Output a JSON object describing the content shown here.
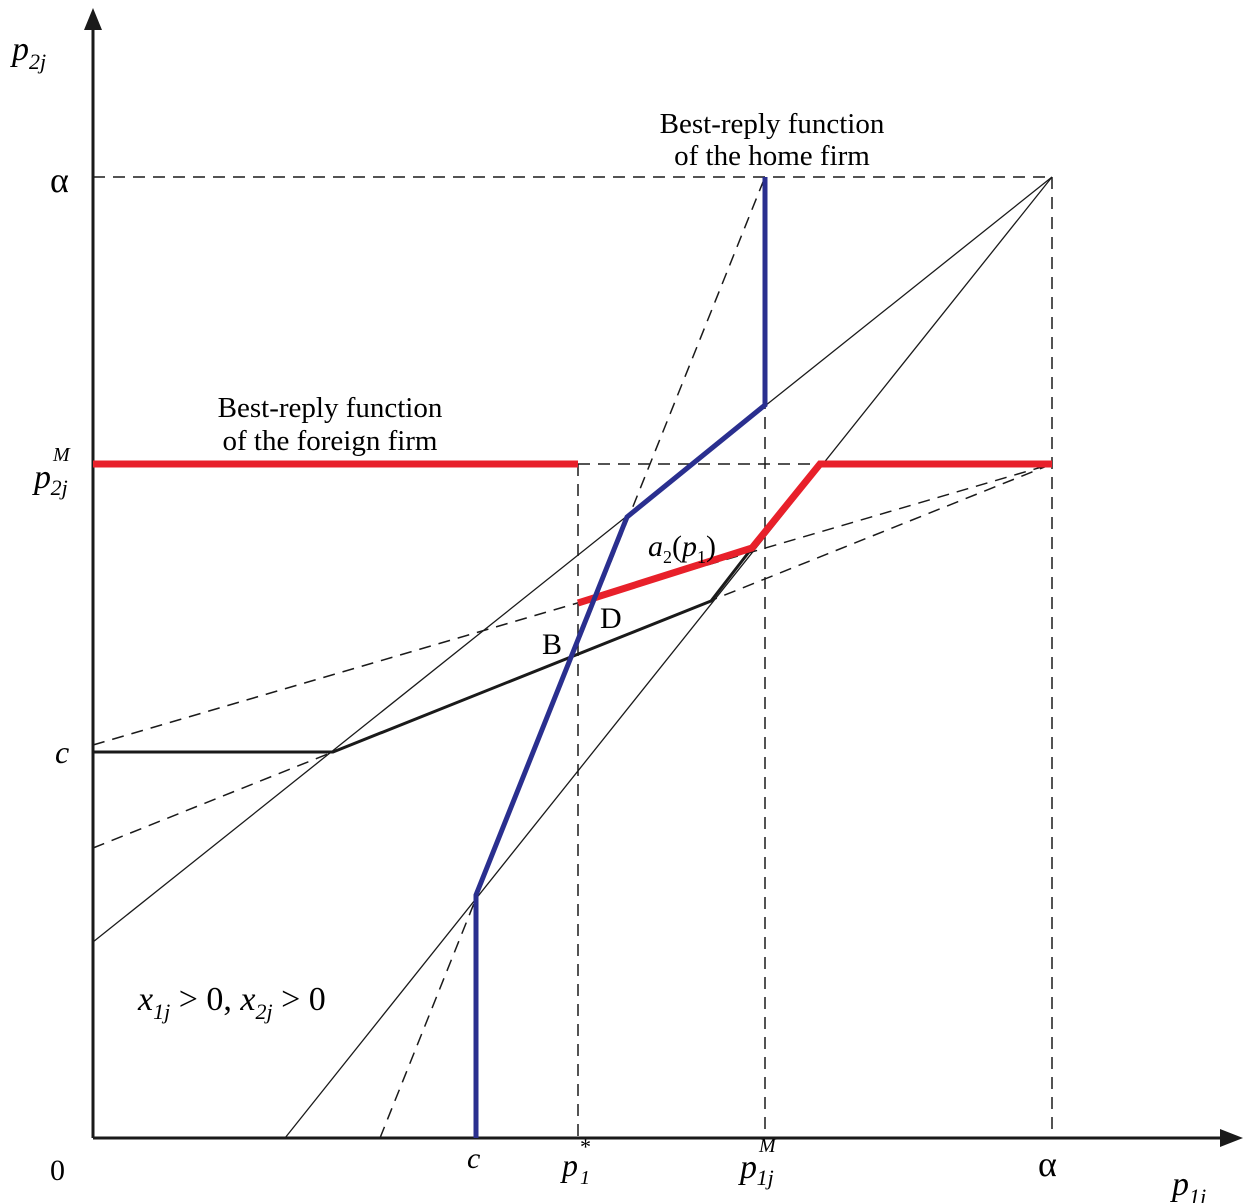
{
  "axes": {
    "y_label": {
      "base": "p",
      "sub": "2j"
    },
    "x_label": {
      "base": "p",
      "sub": "1j"
    },
    "origin": "0"
  },
  "y_ticks": {
    "alpha": "α",
    "p2jM": {
      "base": "p",
      "sup": "M",
      "sub": "2j"
    },
    "c": "c"
  },
  "x_ticks": {
    "c": "c",
    "p1star": {
      "base": "p",
      "sup": "*",
      "sub": "1"
    },
    "p1jM": {
      "base": "p",
      "sup": "M",
      "sub": "1j"
    },
    "alpha": "α"
  },
  "annotations": {
    "home_line1": "Best-reply function",
    "home_line2": "of the home firm",
    "foreign_line1": "Best-reply function",
    "foreign_line2": "of the foreign firm",
    "a2": {
      "base": "a",
      "sub": "2",
      "open": "(",
      "arg": "p",
      "arg_sub": "1",
      "close": ")"
    },
    "point_b": "B",
    "point_d": "D",
    "region": {
      "x1": "x",
      "x1_sub": "1j",
      "rel1": " > 0, ",
      "x2": "x",
      "x2_sub": "2j",
      "rel2": " > 0"
    }
  },
  "colors": {
    "home_reply": "#2a2f8f",
    "foreign_reply": "#e8202a",
    "black_reply": "#1a1a1a",
    "axis": "#1a1a1a"
  }
}
